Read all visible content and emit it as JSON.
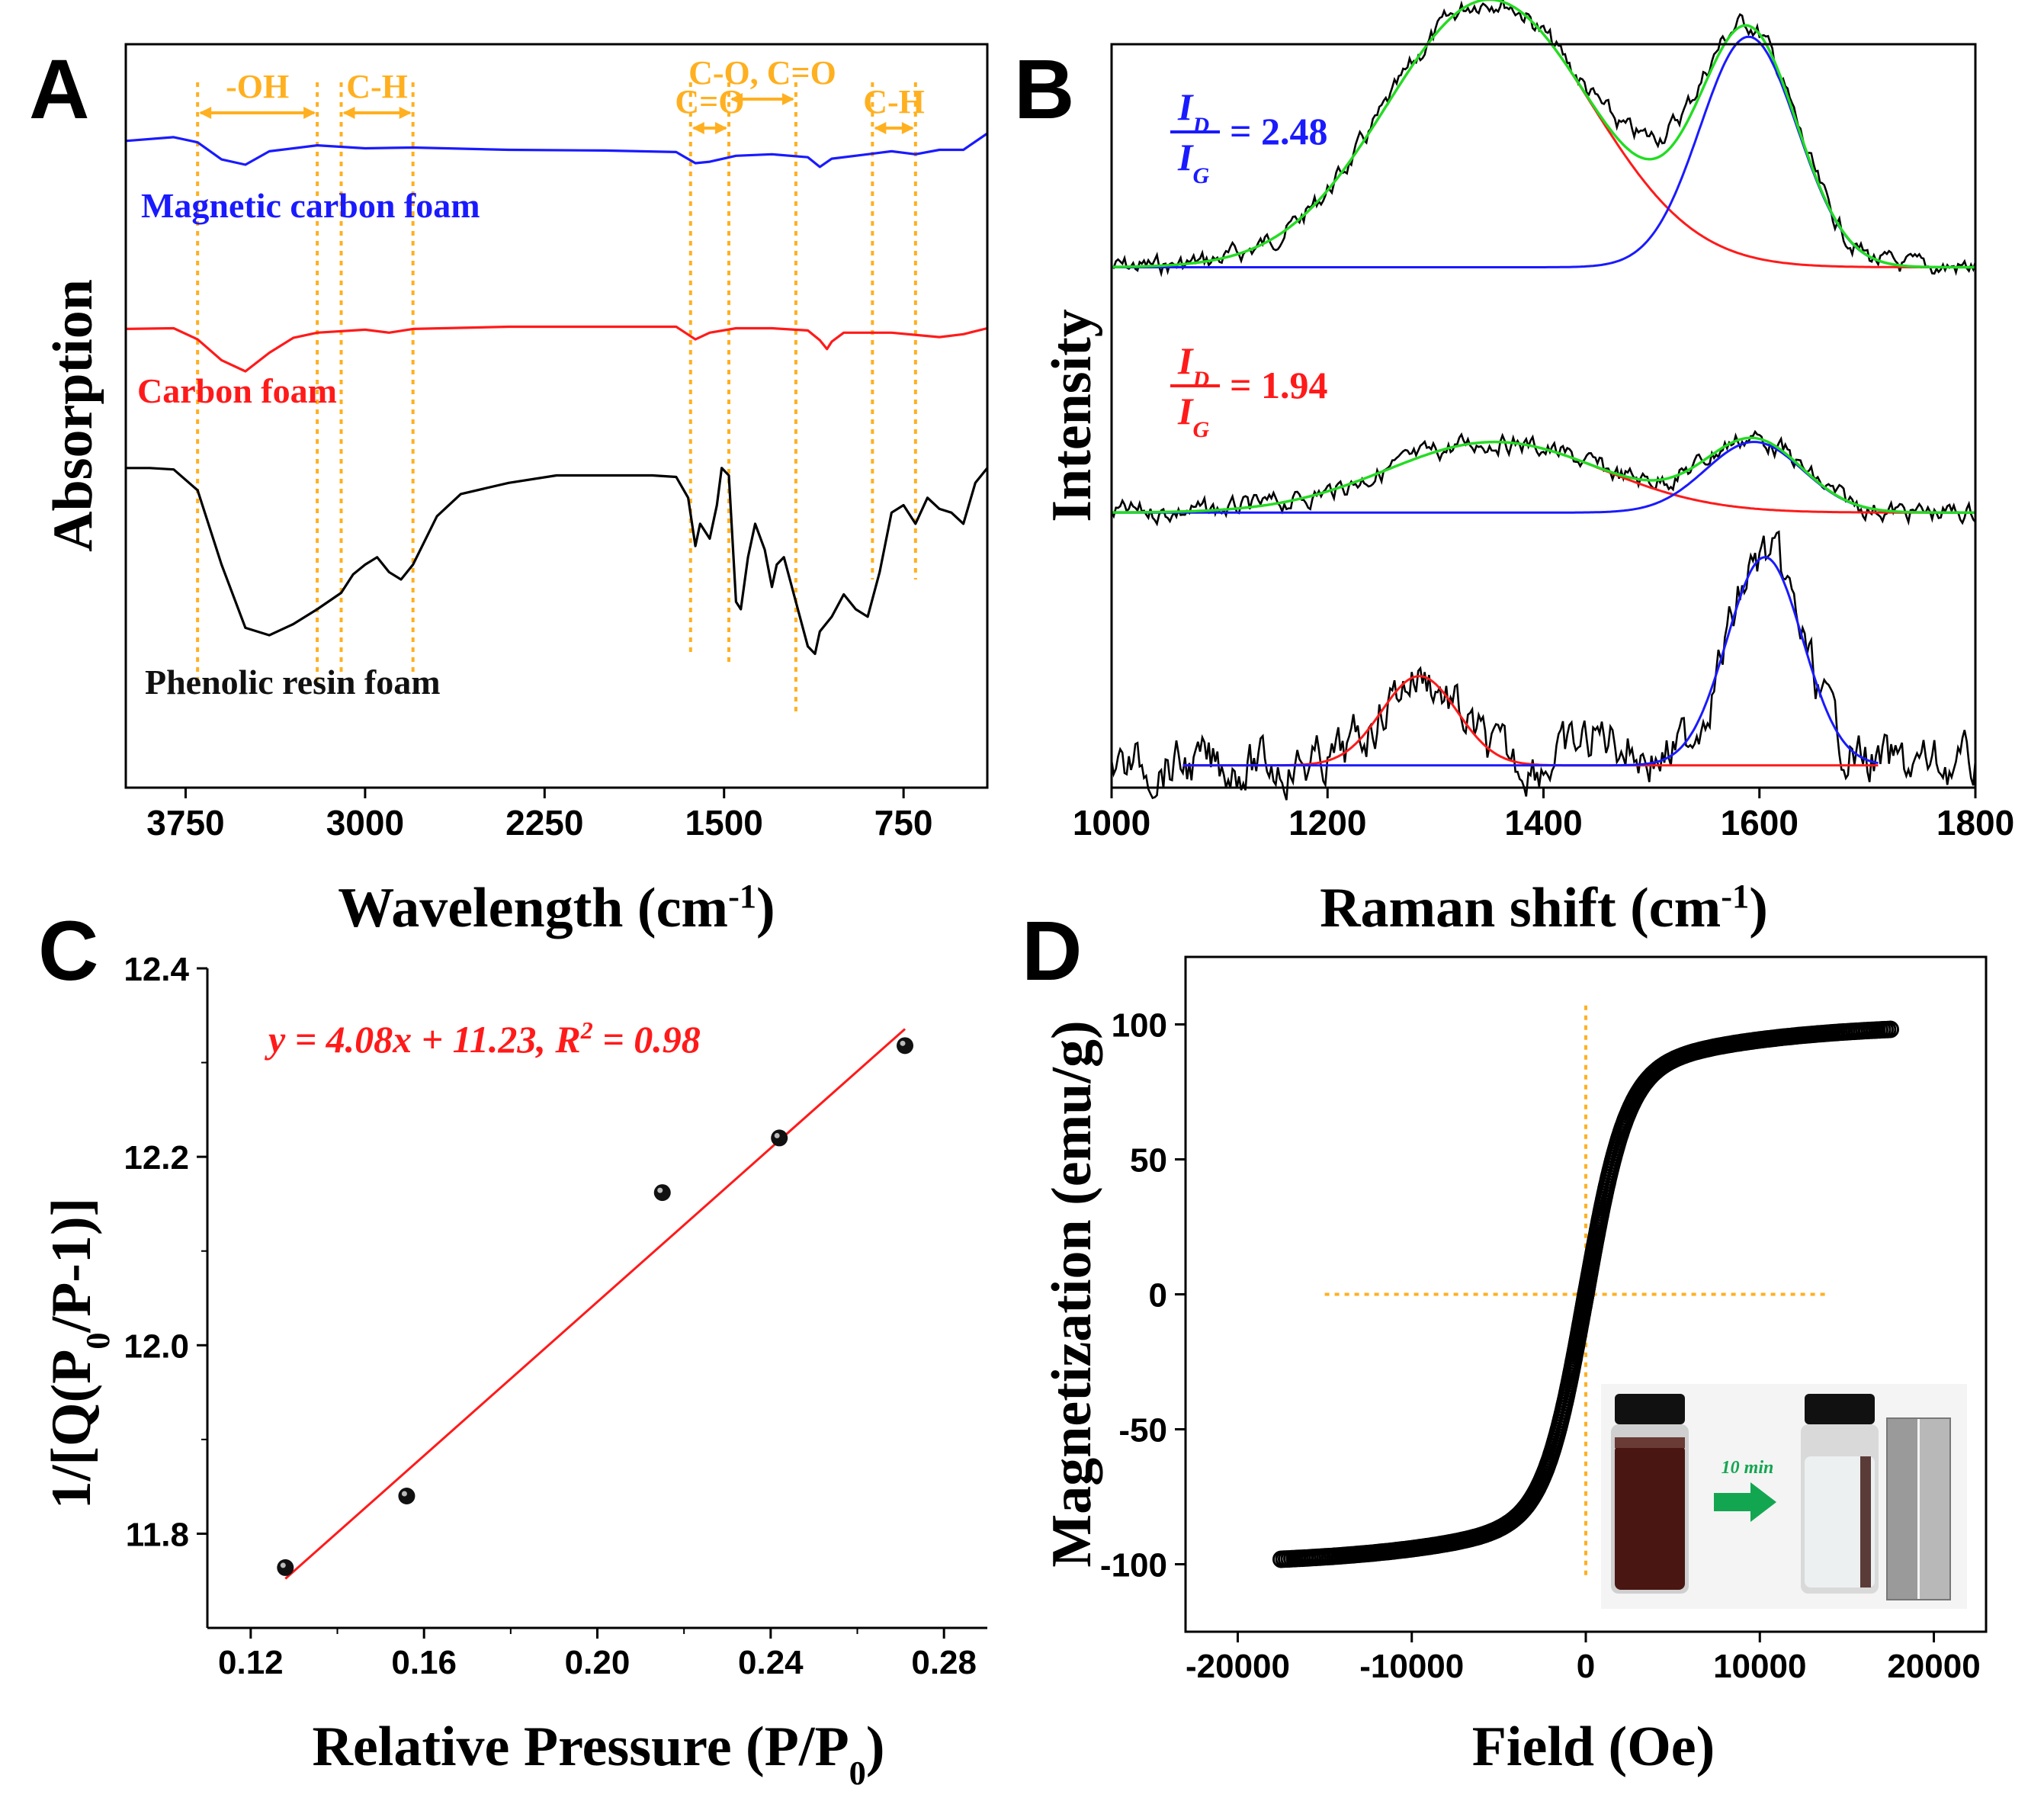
{
  "chart_data": [
    {
      "panel": "A",
      "type": "line",
      "xlabel": "Wavelength (cm-1)",
      "ylabel": "Absorption",
      "xlim": [
        4000,
        400
      ],
      "xticks": [
        3750,
        3000,
        2250,
        1500,
        750
      ],
      "series": [
        {
          "name": "Magnetic carbon foam",
          "color": "#1a1aff",
          "points": [
            [
              4000,
              0.87
            ],
            [
              3800,
              0.875
            ],
            [
              3700,
              0.868
            ],
            [
              3600,
              0.845
            ],
            [
              3500,
              0.838
            ],
            [
              3400,
              0.856
            ],
            [
              3200,
              0.864
            ],
            [
              3000,
              0.86
            ],
            [
              2800,
              0.861
            ],
            [
              2400,
              0.858
            ],
            [
              2000,
              0.857
            ],
            [
              1700,
              0.855
            ],
            [
              1620,
              0.84
            ],
            [
              1560,
              0.842
            ],
            [
              1450,
              0.85
            ],
            [
              1300,
              0.852
            ],
            [
              1150,
              0.848
            ],
            [
              1100,
              0.835
            ],
            [
              1050,
              0.846
            ],
            [
              900,
              0.852
            ],
            [
              800,
              0.856
            ],
            [
              700,
              0.852
            ],
            [
              600,
              0.858
            ],
            [
              500,
              0.858
            ],
            [
              400,
              0.88
            ]
          ]
        },
        {
          "name": "Carbon foam",
          "color": "#ff1a1a",
          "points": [
            [
              4000,
              0.617
            ],
            [
              3800,
              0.618
            ],
            [
              3700,
              0.603
            ],
            [
              3600,
              0.575
            ],
            [
              3500,
              0.56
            ],
            [
              3400,
              0.585
            ],
            [
              3300,
              0.605
            ],
            [
              3200,
              0.612
            ],
            [
              3000,
              0.616
            ],
            [
              2900,
              0.612
            ],
            [
              2800,
              0.617
            ],
            [
              2400,
              0.62
            ],
            [
              2000,
              0.62
            ],
            [
              1700,
              0.62
            ],
            [
              1620,
              0.603
            ],
            [
              1560,
              0.612
            ],
            [
              1450,
              0.618
            ],
            [
              1300,
              0.618
            ],
            [
              1150,
              0.615
            ],
            [
              1100,
              0.602
            ],
            [
              1070,
              0.59
            ],
            [
              1050,
              0.6
            ],
            [
              1000,
              0.612
            ],
            [
              800,
              0.612
            ],
            [
              600,
              0.606
            ],
            [
              500,
              0.61
            ],
            [
              400,
              0.618
            ]
          ]
        },
        {
          "name": "Phenolic resin foam",
          "color": "#000000",
          "points": [
            [
              4000,
              0.43
            ],
            [
              3900,
              0.43
            ],
            [
              3800,
              0.428
            ],
            [
              3700,
              0.4
            ],
            [
              3600,
              0.3
            ],
            [
              3500,
              0.215
            ],
            [
              3400,
              0.205
            ],
            [
              3300,
              0.22
            ],
            [
              3200,
              0.24
            ],
            [
              3100,
              0.262
            ],
            [
              3050,
              0.287
            ],
            [
              3000,
              0.3
            ],
            [
              2950,
              0.31
            ],
            [
              2900,
              0.29
            ],
            [
              2850,
              0.28
            ],
            [
              2800,
              0.3
            ],
            [
              2700,
              0.365
            ],
            [
              2600,
              0.395
            ],
            [
              2400,
              0.41
            ],
            [
              2200,
              0.42
            ],
            [
              2000,
              0.42
            ],
            [
              1800,
              0.42
            ],
            [
              1700,
              0.418
            ],
            [
              1650,
              0.39
            ],
            [
              1620,
              0.325
            ],
            [
              1600,
              0.355
            ],
            [
              1560,
              0.335
            ],
            [
              1530,
              0.38
            ],
            [
              1510,
              0.43
            ],
            [
              1480,
              0.42
            ],
            [
              1450,
              0.25
            ],
            [
              1430,
              0.24
            ],
            [
              1400,
              0.31
            ],
            [
              1370,
              0.355
            ],
            [
              1330,
              0.32
            ],
            [
              1300,
              0.27
            ],
            [
              1280,
              0.3
            ],
            [
              1250,
              0.31
            ],
            [
              1200,
              0.25
            ],
            [
              1150,
              0.19
            ],
            [
              1120,
              0.18
            ],
            [
              1100,
              0.21
            ],
            [
              1050,
              0.23
            ],
            [
              1000,
              0.26
            ],
            [
              950,
              0.24
            ],
            [
              900,
              0.23
            ],
            [
              850,
              0.29
            ],
            [
              800,
              0.37
            ],
            [
              750,
              0.38
            ],
            [
              700,
              0.355
            ],
            [
              650,
              0.39
            ],
            [
              600,
              0.375
            ],
            [
              550,
              0.37
            ],
            [
              500,
              0.355
            ],
            [
              450,
              0.41
            ],
            [
              400,
              0.43
            ]
          ]
        }
      ],
      "annotations": [
        {
          "text": "-OH",
          "x1": 3700,
          "x2": 3200
        },
        {
          "text": "C-H",
          "x1": 3100,
          "x2": 2800
        },
        {
          "text": "C=O",
          "x1": 1640,
          "x2": 1480
        },
        {
          "text": "C-O, C=O",
          "x1": 1480,
          "x2": 1200
        },
        {
          "text": "C-H",
          "x1": 880,
          "x2": 700
        }
      ],
      "guide_lines_x": [
        3700,
        3200,
        3100,
        2800,
        1640,
        1480,
        1200,
        880,
        700
      ],
      "series_labels": [
        "Magnetic carbon foam",
        "Carbon foam",
        "Phenolic resin foam"
      ]
    },
    {
      "panel": "B",
      "type": "line",
      "xlabel": "Raman shift (cm-1)",
      "ylabel": "Intensity",
      "xlim": [
        1000,
        1800
      ],
      "xticks": [
        1000,
        1200,
        1400,
        1600,
        1800
      ],
      "ratios": [
        {
          "numerator": "I",
          "num_sub": "D",
          "denominator": "I",
          "den_sub": "G",
          "value": "= 2.48",
          "color": "#1a1aff"
        },
        {
          "numerator": "I",
          "num_sub": "D",
          "denominator": "I",
          "den_sub": "G",
          "value": "= 1.94",
          "color": "#ff1a1a"
        }
      ],
      "spectra": [
        {
          "name": "Magnetic carbon foam",
          "baseline": 0.3,
          "d_center": 1350,
          "d_width": 95,
          "d_height": 0.36,
          "g_center": 1590,
          "g_width": 45,
          "g_height": 0.31
        },
        {
          "name": "Carbon foam",
          "baseline": 0.63,
          "d_center": 1355,
          "d_width": 100,
          "d_height": 0.095,
          "g_center": 1595,
          "g_width": 45,
          "g_height": 0.095
        },
        {
          "name": "Phenolic resin foam",
          "baseline": 0.97,
          "d_center": 1285,
          "d_width": 35,
          "d_height": 0.12,
          "g_center": 1605,
          "g_width": 35,
          "g_height": 0.28
        }
      ],
      "fit_colors": {
        "D": "#ff1a1a",
        "G": "#1a1aff",
        "sum": "#22dd22",
        "raw": "#000000"
      }
    },
    {
      "panel": "C",
      "type": "scatter",
      "xlabel": "Relative Pressure (P/P0)",
      "ylabel": "1/[Q(P0/P-1)]",
      "xlim": [
        0.11,
        0.29
      ],
      "ylim": [
        11.7,
        12.4
      ],
      "xticks": [
        0.12,
        0.16,
        0.2,
        0.24,
        0.28
      ],
      "yticks": [
        11.8,
        12.0,
        12.2,
        12.4
      ],
      "x": [
        0.128,
        0.156,
        0.215,
        0.242,
        0.271
      ],
      "y": [
        11.764,
        11.84,
        12.162,
        12.22,
        12.318
      ],
      "fit": {
        "slope": 4.08,
        "intercept": 11.23,
        "r2": 0.98,
        "x_range": [
          0.128,
          0.271
        ],
        "label": "y = 4.08x + 11.23, R² = 0.98",
        "color": "#ff1a1a"
      }
    },
    {
      "panel": "D",
      "type": "scatter",
      "xlabel": "Field (Oe)",
      "ylabel": "Magnetization (emu/g)",
      "xlim": [
        -23000,
        23000
      ],
      "ylim": [
        -125,
        125
      ],
      "xticks": [
        -20000,
        -10000,
        0,
        10000,
        20000
      ],
      "yticks": [
        -100,
        -50,
        0,
        50,
        100
      ],
      "hysteresis": {
        "Ms": 100,
        "H0": 2300,
        "field_range": [
          -17500,
          17500
        ]
      },
      "guide_lines": {
        "horizontal_y": 0,
        "horizontal_x_range": [
          -15000,
          14000
        ],
        "vertical_x": 0,
        "vertical_y_range": [
          -105,
          107
        ]
      },
      "inset_label": "10 min"
    }
  ]
}
